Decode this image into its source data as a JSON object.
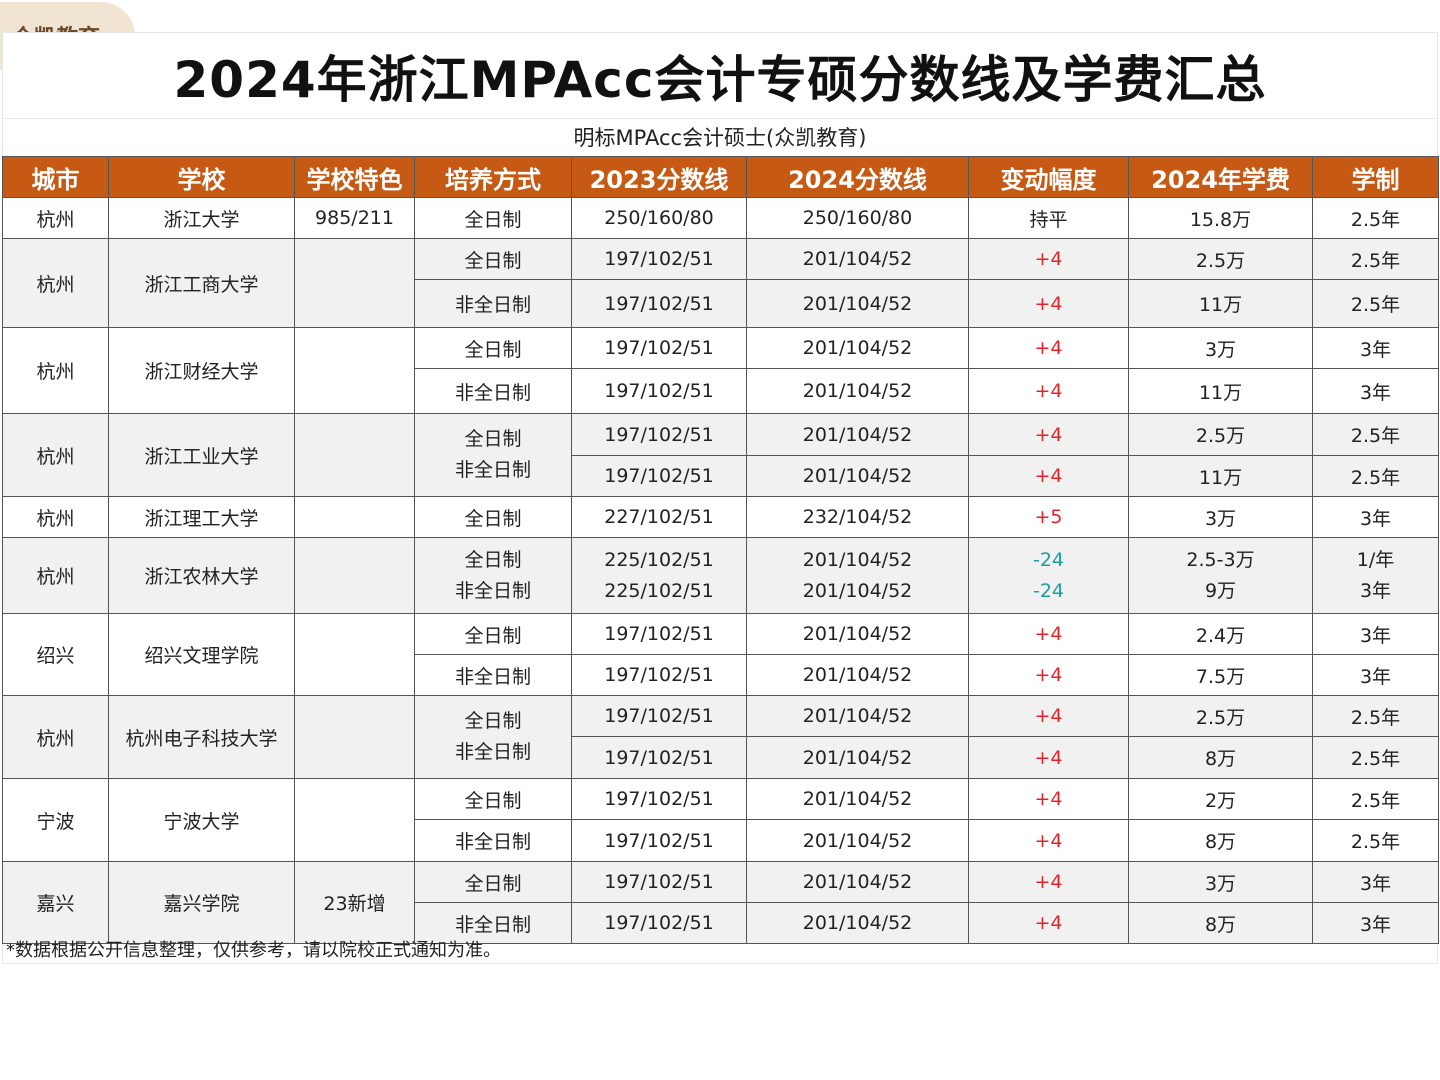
{
  "badge": "众凯教育",
  "title": "2024年浙江MPAcc会计专硕分数线及学费汇总",
  "subtitle": "明标MPAcc会计硕士(众凯教育)",
  "watermark": "凯教育",
  "headers": [
    "城市",
    "学校",
    "学校特色",
    "培养方式",
    "2023分数线",
    "2024分数线",
    "变动幅度",
    "2024年学费",
    "学制"
  ],
  "rows": [
    {
      "city": "杭州",
      "school": "浙江大学",
      "feature": "985/211",
      "mode": "全日制",
      "s2023": "250/160/80",
      "s2024": "250/160/80",
      "change": "持平",
      "fee": "15.8万",
      "years": "2.5年"
    },
    {
      "city": "杭州",
      "school": "浙江工商大学",
      "feature": "",
      "mode": "全日制",
      "s2023": "197/102/51",
      "s2024": "201/104/52",
      "change": "+4",
      "fee": "2.5万",
      "years": "2.5年"
    },
    {
      "mode": "非全日制",
      "s2023": "197/102/51",
      "s2024": "201/104/52",
      "change": "+4",
      "fee": "11万",
      "years": "2.5年"
    },
    {
      "city": "杭州",
      "school": "浙江财经大学",
      "feature": "",
      "mode": "全日制",
      "s2023": "197/102/51",
      "s2024": "201/104/52",
      "change": "+4",
      "fee": "3万",
      "years": "3年"
    },
    {
      "mode": "非全日制",
      "s2023": "197/102/51",
      "s2024": "201/104/52",
      "change": "+4",
      "fee": "11万",
      "years": "3年"
    },
    {
      "city": "杭州",
      "school": "浙江工业大学",
      "feature": "",
      "mode_a": "全日制",
      "mode_b": "非全日制",
      "s2023": "197/102/51",
      "s2024": "201/104/52",
      "change": "+4",
      "fee": "2.5万",
      "years": "2.5年"
    },
    {
      "s2023": "197/102/51",
      "s2024": "201/104/52",
      "change": "+4",
      "fee": "11万",
      "years": "2.5年"
    },
    {
      "city": "杭州",
      "school": "浙江理工大学",
      "feature": "",
      "mode": "全日制",
      "s2023": "227/102/51",
      "s2024": "232/104/52",
      "change": "+5",
      "fee": "3万",
      "years": "3年"
    },
    {
      "city": "杭州",
      "school": "浙江农林大学",
      "feature": "",
      "mode_a": "全日制",
      "mode_b": "非全日制",
      "s2023_a": "225/102/51",
      "s2023_b": "225/102/51",
      "s2024_a": "201/104/52",
      "s2024_b": "201/104/52",
      "change_a": "-24",
      "change_b": "-24",
      "fee_a": "2.5-3万",
      "fee_b": "9万",
      "years_a": "1/年",
      "years_b": "3年"
    },
    {
      "city": "绍兴",
      "school": "绍兴文理学院",
      "feature": "",
      "mode": "全日制",
      "s2023": "197/102/51",
      "s2024": "201/104/52",
      "change": "+4",
      "fee": "2.4万",
      "years": "3年"
    },
    {
      "mode": "非全日制",
      "s2023": "197/102/51",
      "s2024": "201/104/52",
      "change": "+4",
      "fee": "7.5万",
      "years": "3年"
    },
    {
      "city": "杭州",
      "school": "杭州电子科技大学",
      "feature": "",
      "mode_a": "全日制",
      "mode_b": "非全日制",
      "s2023": "197/102/51",
      "s2024": "201/104/52",
      "change": "+4",
      "fee": "2.5万",
      "years": "2.5年"
    },
    {
      "s2023": "197/102/51",
      "s2024": "201/104/52",
      "change": "+4",
      "fee": "8万",
      "years": "2.5年"
    },
    {
      "city": "宁波",
      "school": "宁波大学",
      "feature": "",
      "mode": "全日制",
      "s2023": "197/102/51",
      "s2024": "201/104/52",
      "change": "+4",
      "fee": "2万",
      "years": "2.5年"
    },
    {
      "mode": "非全日制",
      "s2023": "197/102/51",
      "s2024": "201/104/52",
      "change": "+4",
      "fee": "8万",
      "years": "2.5年"
    },
    {
      "city": "嘉兴",
      "school": "嘉兴学院",
      "feature": "23新增",
      "mode": "全日制",
      "s2023": "197/102/51",
      "s2024": "201/104/52",
      "change": "+4",
      "fee": "3万",
      "years": "3年"
    },
    {
      "mode": "非全日制",
      "s2023": "197/102/51",
      "s2024": "201/104/52",
      "change": "+4",
      "fee": "8万",
      "years": "3年"
    }
  ],
  "footnote": "*数据根据公开信息整理，仅供参考，请以院校正式通知为准。",
  "colors": {
    "header_bg": "#c65a14",
    "increase": "#e0242a",
    "decrease": "#1a9e9e",
    "row_alt": "#f1f1f1"
  }
}
